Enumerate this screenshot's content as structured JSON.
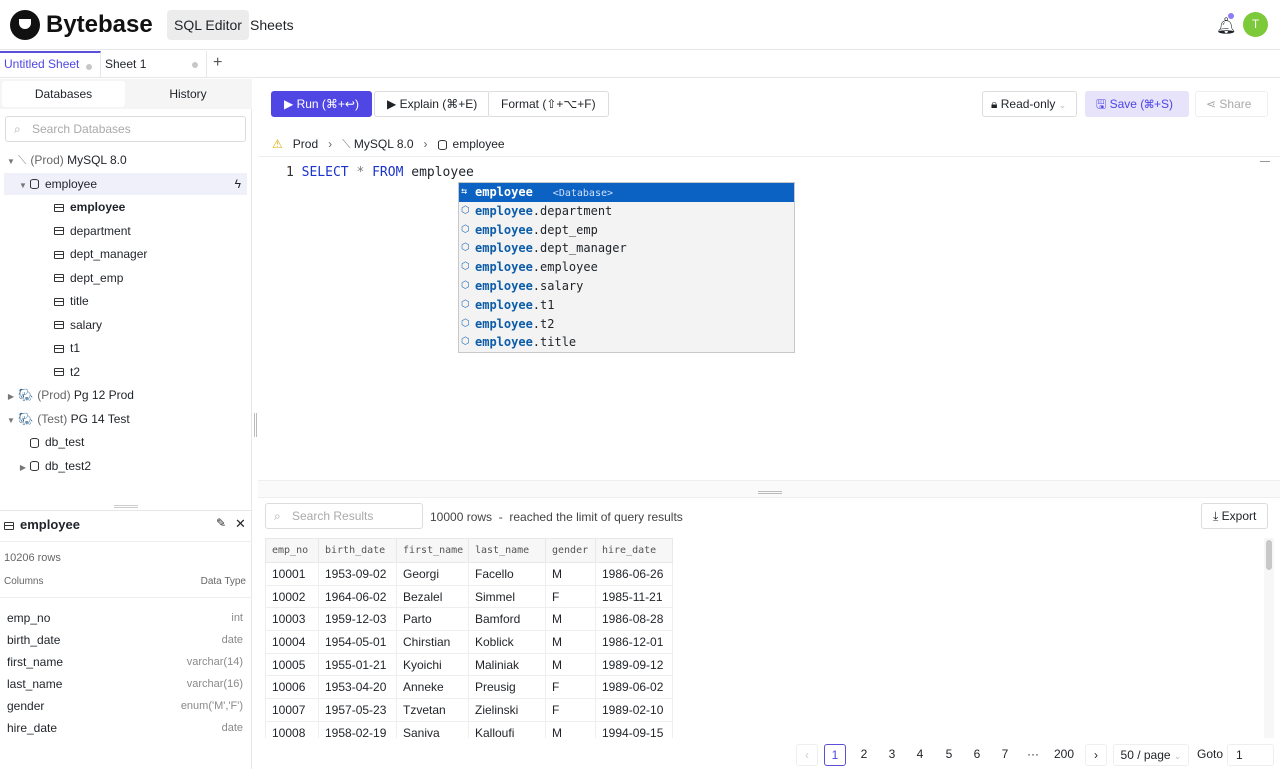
{
  "header": {
    "brand": "Bytebase",
    "nav": [
      "SQL Editor",
      "Sheets"
    ],
    "avatar": "T",
    "accent": "#5046e4"
  },
  "tabs": [
    {
      "label": "Untitled Sheet"
    },
    {
      "label": "Sheet 1"
    }
  ],
  "left": {
    "segments": [
      "Databases",
      "History"
    ],
    "search_placeholder": "Search Databases",
    "tree": [
      {
        "label": "(Prod)",
        "name": "MySQL 8.0",
        "level": 0,
        "icon": "mysql-icon",
        "expanded": true
      },
      {
        "label": "employee",
        "level": 1,
        "icon": "database-icon",
        "expanded": true,
        "selected": true
      },
      {
        "label": "employee",
        "level": 2,
        "icon": "table-icon",
        "bold": true
      },
      {
        "label": "department",
        "level": 2,
        "icon": "table-icon"
      },
      {
        "label": "dept_manager",
        "level": 2,
        "icon": "table-icon"
      },
      {
        "label": "dept_emp",
        "level": 2,
        "icon": "table-icon"
      },
      {
        "label": "title",
        "level": 2,
        "icon": "table-icon"
      },
      {
        "label": "salary",
        "level": 2,
        "icon": "table-icon"
      },
      {
        "label": "t1",
        "level": 2,
        "icon": "table-icon"
      },
      {
        "label": "t2",
        "level": 2,
        "icon": "table-icon"
      },
      {
        "label": "(Prod)",
        "name": "Pg 12 Prod",
        "level": 0,
        "icon": "postgres-icon",
        "expanded": false
      },
      {
        "label": "(Test)",
        "name": "PG 14 Test",
        "level": 0,
        "icon": "postgres-icon",
        "expanded": true
      },
      {
        "label": "db_test",
        "level": 1,
        "icon": "database-icon"
      },
      {
        "label": "db_test2",
        "level": 1,
        "icon": "database-icon",
        "expanded": false
      }
    ],
    "detail": {
      "title": "employee",
      "rows": "10206 rows",
      "columns_label": "Columns",
      "type_label": "Data Type",
      "columns": [
        [
          "emp_no",
          "int"
        ],
        [
          "birth_date",
          "date"
        ],
        [
          "first_name",
          "varchar(14)"
        ],
        [
          "last_name",
          "varchar(16)"
        ],
        [
          "gender",
          "enum('M','F')"
        ],
        [
          "hire_date",
          "date"
        ]
      ]
    }
  },
  "toolbar": {
    "run": "▶ Run (⌘+↩)",
    "explain": "▶ Explain (⌘+E)",
    "format": "Format (⇧+⌥+F)",
    "readonly": "Read-only",
    "save": "Save (⌘+S)",
    "share": "Share"
  },
  "breadcrumb": {
    "env": "Prod",
    "instance": "MySQL 8.0",
    "database": "employee"
  },
  "editor": {
    "line": "1",
    "kw1": "SELECT",
    "star": "*",
    "kw2": "FROM",
    "ident": "employee"
  },
  "suggest": {
    "first": {
      "label": "employee",
      "hint": "<Database>"
    },
    "prefix": "employee",
    "items": [
      ".department",
      ".dept_emp",
      ".dept_manager",
      ".employee",
      ".salary",
      ".t1",
      ".t2",
      ".title"
    ]
  },
  "results": {
    "search_placeholder": "Search Results",
    "status": "10000 rows  -  reached the limit of query results",
    "export": "Export",
    "columns": [
      "emp_no",
      "birth_date",
      "first_name",
      "last_name",
      "gender",
      "hire_date"
    ],
    "rows": [
      [
        "10001",
        "1953-09-02",
        "Georgi",
        "Facello",
        "M",
        "1986-06-26"
      ],
      [
        "10002",
        "1964-06-02",
        "Bezalel",
        "Simmel",
        "F",
        "1985-11-21"
      ],
      [
        "10003",
        "1959-12-03",
        "Parto",
        "Bamford",
        "M",
        "1986-08-28"
      ],
      [
        "10004",
        "1954-05-01",
        "Chirstian",
        "Koblick",
        "M",
        "1986-12-01"
      ],
      [
        "10005",
        "1955-01-21",
        "Kyoichi",
        "Maliniak",
        "M",
        "1989-09-12"
      ],
      [
        "10006",
        "1953-04-20",
        "Anneke",
        "Preusig",
        "F",
        "1989-06-02"
      ],
      [
        "10007",
        "1957-05-23",
        "Tzvetan",
        "Zielinski",
        "F",
        "1989-02-10"
      ],
      [
        "10008",
        "1958-02-19",
        "Saniva",
        "Kalloufi",
        "M",
        "1994-09-15"
      ]
    ]
  },
  "pagination": {
    "pages": [
      "1",
      "2",
      "3",
      "4",
      "5",
      "6",
      "7",
      "···",
      "200"
    ],
    "current": "1",
    "page_size": "50 / page",
    "goto_label": "Goto",
    "goto_value": "1"
  }
}
